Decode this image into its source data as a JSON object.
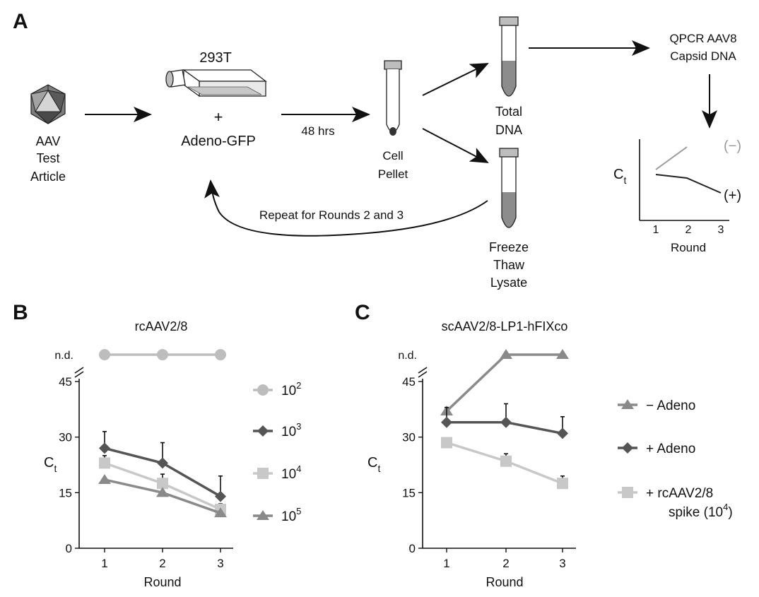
{
  "panel_a": {
    "panel_label": "A",
    "aav_label": [
      "AAV",
      "Test",
      "Article"
    ],
    "cell_line": "293T",
    "plus": "+",
    "adeno": "Adeno-GFP",
    "incubation": "48 hrs",
    "pellet_label": [
      "Cell",
      "Pellet"
    ],
    "total_dna": [
      "Total",
      "DNA"
    ],
    "lysate_label": [
      "Freeze",
      "Thaw",
      "Lysate"
    ],
    "repeat_label": "Repeat for Rounds 2 and 3",
    "qpcr_label": [
      "QPCR AAV8",
      "Capsid DNA"
    ],
    "inset": {
      "ylabel": "C",
      "ylabel_sub": "t",
      "xlabel": "Round",
      "ticks": [
        "1",
        "2",
        "3"
      ],
      "neg_label": "(−)",
      "pos_label": "(+)"
    }
  },
  "chart_data": [
    {
      "type": "line",
      "panel_label": "B",
      "title": "rcAAV2/8",
      "xlabel": "Round",
      "ylabel": "C",
      "ylabel_sub": "t",
      "x": [
        1,
        2,
        3
      ],
      "x_ticks": [
        "1",
        "2",
        "3"
      ],
      "y_ticks": [
        "0",
        "15",
        "30",
        "45"
      ],
      "y_break_label": "n.d.",
      "ylim": [
        0,
        45
      ],
      "series": [
        {
          "name": "10",
          "exp": "2",
          "marker": "circle",
          "color": "#bdbdbd",
          "values": [
            "n.d.",
            "n.d.",
            "n.d."
          ],
          "errors": [
            0,
            0,
            0
          ]
        },
        {
          "name": "10",
          "exp": "3",
          "marker": "diamond",
          "color": "#555555",
          "values": [
            27,
            23,
            14
          ],
          "errors": [
            4.5,
            5.5,
            5.5
          ]
        },
        {
          "name": "10",
          "exp": "4",
          "marker": "square",
          "color": "#c8c8c8",
          "values": [
            23,
            17.5,
            10.5
          ],
          "errors": [
            2,
            2.5,
            1.5
          ]
        },
        {
          "name": "10",
          "exp": "5",
          "marker": "triangle",
          "color": "#8a8a8a",
          "values": [
            18.5,
            15,
            9.5
          ],
          "errors": [
            0.5,
            0.5,
            0.5
          ]
        }
      ]
    },
    {
      "type": "line",
      "panel_label": "C",
      "title": "scAAV2/8-LP1-hFIXco",
      "xlabel": "Round",
      "ylabel": "C",
      "ylabel_sub": "t",
      "x": [
        1,
        2,
        3
      ],
      "x_ticks": [
        "1",
        "2",
        "3"
      ],
      "y_ticks": [
        "0",
        "15",
        "30",
        "45"
      ],
      "y_break_label": "n.d.",
      "ylim": [
        0,
        45
      ],
      "series": [
        {
          "name": "− Adeno",
          "marker": "triangle",
          "color": "#8a8a8a",
          "values": [
            37,
            "n.d.",
            "n.d."
          ],
          "errors": [
            1,
            0,
            0
          ]
        },
        {
          "name": "+ Adeno",
          "marker": "diamond",
          "color": "#555555",
          "values": [
            34,
            34,
            31
          ],
          "errors": [
            4,
            5,
            4.5
          ]
        },
        {
          "name": "+ rcAAV2/8",
          "name2": "spike (10",
          "exp": "4",
          "name2_end": ")",
          "marker": "square",
          "color": "#c8c8c8",
          "values": [
            28.5,
            23.5,
            17.5
          ],
          "errors": [
            1,
            2,
            2
          ]
        }
      ]
    }
  ]
}
